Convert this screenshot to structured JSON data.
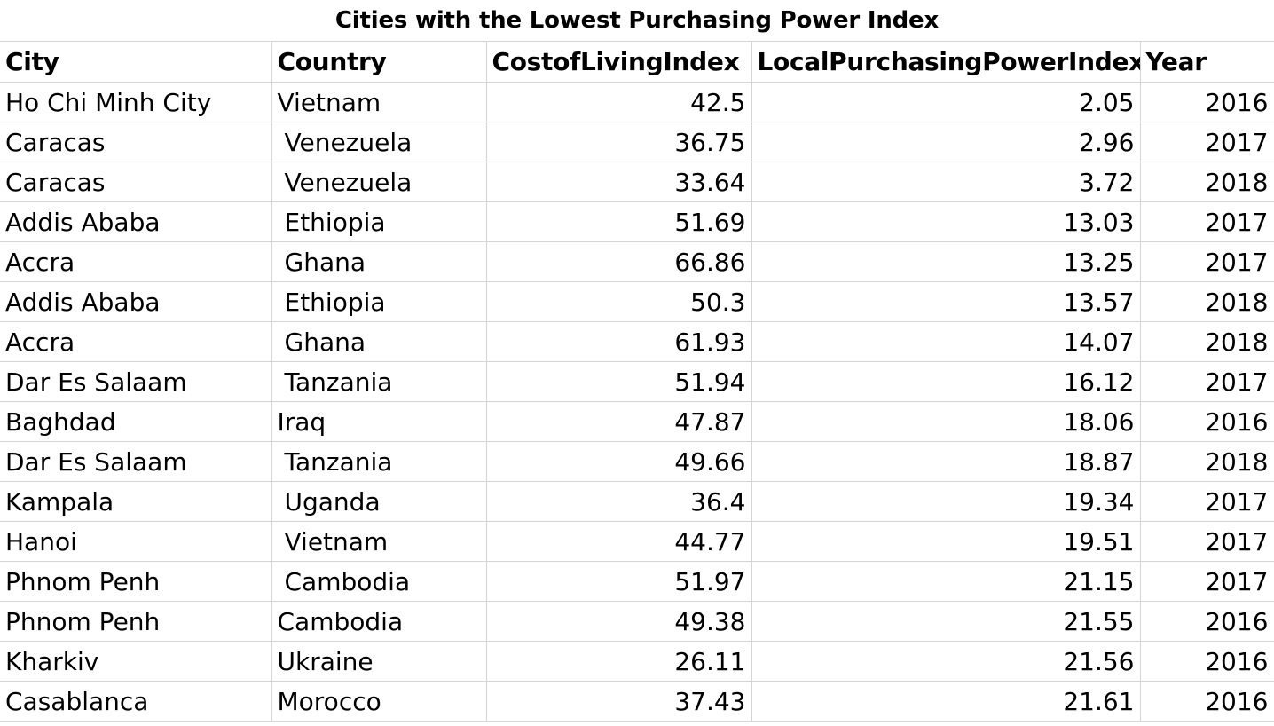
{
  "title": "Cities with the Lowest Purchasing Power Index",
  "columns": [
    "City",
    "Country",
    "CostofLivingIndex",
    "LocalPurchasingPowerIndex",
    "Year"
  ],
  "rows": [
    {
      "city": "Ho Chi Minh City",
      "country": "Vietnam",
      "col": "42.5",
      "lpp": "2.05",
      "year": "2016"
    },
    {
      "city": "Caracas",
      "country": "Venezuela",
      "col": "36.75",
      "lpp": "2.96",
      "year": "2017"
    },
    {
      "city": "Caracas",
      "country": "Venezuela",
      "col": "33.64",
      "lpp": "3.72",
      "year": "2018"
    },
    {
      "city": "Addis Ababa",
      "country": "Ethiopia",
      "col": "51.69",
      "lpp": "13.03",
      "year": "2017"
    },
    {
      "city": "Accra",
      "country": "Ghana",
      "col": "66.86",
      "lpp": "13.25",
      "year": "2017"
    },
    {
      "city": "Addis Ababa",
      "country": "Ethiopia",
      "col": "50.3",
      "lpp": "13.57",
      "year": "2018"
    },
    {
      "city": "Accra",
      "country": "Ghana",
      "col": "61.93",
      "lpp": "14.07",
      "year": "2018"
    },
    {
      "city": "Dar Es Salaam",
      "country": "Tanzania",
      "col": "51.94",
      "lpp": "16.12",
      "year": "2017"
    },
    {
      "city": "Baghdad",
      "country": "Iraq",
      "col": "47.87",
      "lpp": "18.06",
      "year": "2016"
    },
    {
      "city": "Dar Es Salaam",
      "country": "Tanzania",
      "col": "49.66",
      "lpp": "18.87",
      "year": "2018"
    },
    {
      "city": "Kampala",
      "country": "Uganda",
      "col": "36.4",
      "lpp": "19.34",
      "year": "2017"
    },
    {
      "city": "Hanoi",
      "country": "Vietnam",
      "col": "44.77",
      "lpp": "19.51",
      "year": "2017"
    },
    {
      "city": "Phnom Penh",
      "country": "Cambodia",
      "col": "51.97",
      "lpp": "21.15",
      "year": "2017"
    },
    {
      "city": "Phnom Penh",
      "country": "Cambodia",
      "col": "49.38",
      "lpp": "21.55",
      "year": "2016"
    },
    {
      "city": "Kharkiv",
      "country": "Ukraine",
      "col": "26.11",
      "lpp": "21.56",
      "year": "2016"
    },
    {
      "city": "Casablanca",
      "country": "Morocco",
      "col": "37.43",
      "lpp": "21.61",
      "year": "2016"
    }
  ]
}
